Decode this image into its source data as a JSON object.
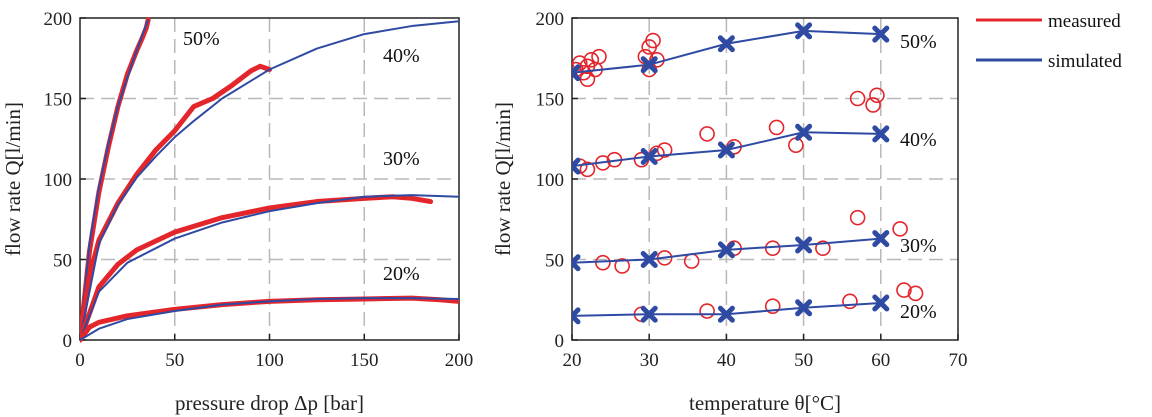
{
  "legend": [
    {
      "label": "measured",
      "color": "#e3262c"
    },
    {
      "label": "simulated",
      "color": "#2f4aa3"
    }
  ],
  "colors": {
    "measured": "#e3262c",
    "simulated": "#2f4aa3",
    "grid": "#b8b8b8"
  },
  "chart_data": [
    {
      "type": "line",
      "xlabel": "pressure drop Δp [bar]",
      "ylabel": "flow rate Q[l/min]",
      "xlim": [
        0,
        200
      ],
      "ylim": [
        0,
        200
      ],
      "xticks": [
        0,
        50,
        100,
        150,
        200
      ],
      "yticks": [
        0,
        50,
        100,
        150,
        200
      ],
      "grid": true,
      "series": [
        {
          "name": "50%",
          "annotation": "50%",
          "measured": [
            [
              0,
              0
            ],
            [
              5,
              55
            ],
            [
              10,
              92
            ],
            [
              15,
              120
            ],
            [
              20,
              145
            ],
            [
              25,
              165
            ],
            [
              30,
              180
            ],
            [
              33,
              188
            ],
            [
              35,
              194
            ],
            [
              36,
              199
            ]
          ],
          "simulated": [
            [
              0,
              0
            ],
            [
              5,
              60
            ],
            [
              10,
              95
            ],
            [
              15,
              122
            ],
            [
              20,
              145
            ],
            [
              25,
              163
            ],
            [
              30,
              180
            ],
            [
              35,
              196
            ],
            [
              36,
              199
            ]
          ]
        },
        {
          "name": "40%",
          "annotation": "40%",
          "measured": [
            [
              0,
              0
            ],
            [
              5,
              40
            ],
            [
              10,
              62
            ],
            [
              20,
              85
            ],
            [
              30,
              103
            ],
            [
              40,
              118
            ],
            [
              50,
              130
            ],
            [
              60,
              145
            ],
            [
              70,
              150
            ],
            [
              80,
              158
            ],
            [
              90,
              167
            ],
            [
              95,
              170
            ],
            [
              100,
              168
            ]
          ],
          "simulated": [
            [
              0,
              0
            ],
            [
              10,
              60
            ],
            [
              20,
              84
            ],
            [
              30,
              101
            ],
            [
              40,
              114
            ],
            [
              50,
              126
            ],
            [
              60,
              136
            ],
            [
              75,
              150
            ],
            [
              100,
              168
            ],
            [
              125,
              181
            ],
            [
              150,
              190
            ],
            [
              175,
              195
            ],
            [
              200,
              198
            ]
          ]
        },
        {
          "name": "30%",
          "annotation": "30%",
          "measured": [
            [
              0,
              0
            ],
            [
              10,
              33
            ],
            [
              20,
              47
            ],
            [
              30,
              56
            ],
            [
              50,
              67
            ],
            [
              75,
              76
            ],
            [
              100,
              82
            ],
            [
              125,
              86
            ],
            [
              150,
              88
            ],
            [
              165,
              89
            ],
            [
              175,
              88
            ],
            [
              185,
              86
            ]
          ],
          "simulated": [
            [
              0,
              0
            ],
            [
              10,
              30
            ],
            [
              25,
              48
            ],
            [
              50,
              63
            ],
            [
              75,
              73
            ],
            [
              100,
              80
            ],
            [
              125,
              85
            ],
            [
              150,
              89
            ],
            [
              175,
              90
            ],
            [
              200,
              89
            ]
          ]
        },
        {
          "name": "20%",
          "annotation": "20%",
          "measured": [
            [
              0,
              0
            ],
            [
              5,
              8
            ],
            [
              10,
              11
            ],
            [
              25,
              15
            ],
            [
              50,
              19
            ],
            [
              75,
              22
            ],
            [
              100,
              24
            ],
            [
              125,
              25
            ],
            [
              150,
              25.5
            ],
            [
              175,
              26
            ],
            [
              190,
              25
            ],
            [
              200,
              24
            ]
          ],
          "simulated": [
            [
              0,
              0
            ],
            [
              10,
              7
            ],
            [
              25,
              13
            ],
            [
              50,
              18
            ],
            [
              75,
              22
            ],
            [
              100,
              24
            ],
            [
              125,
              25.5
            ],
            [
              150,
              26
            ],
            [
              175,
              26
            ],
            [
              200,
              25.5
            ]
          ]
        }
      ]
    },
    {
      "type": "scatter",
      "xlabel": "temperature θ[°C]",
      "ylabel": "flow rate Q[l/min]",
      "xlim": [
        20,
        70
      ],
      "ylim": [
        0,
        200
      ],
      "xticks": [
        20,
        30,
        40,
        50,
        60,
        70
      ],
      "yticks": [
        0,
        50,
        100,
        150,
        200
      ],
      "grid": true,
      "series": [
        {
          "name": "50%",
          "annotation": "50%",
          "measured": [
            [
              20.5,
              168
            ],
            [
              21,
              172
            ],
            [
              21.5,
              166
            ],
            [
              22,
              170
            ],
            [
              22.5,
              174
            ],
            [
              23,
              168
            ],
            [
              23.5,
              176
            ],
            [
              22,
              162
            ],
            [
              29.5,
              176
            ],
            [
              30,
              182
            ],
            [
              30.5,
              186
            ],
            [
              31,
              174
            ],
            [
              30,
              168
            ]
          ],
          "simulated": [
            [
              20,
              166
            ],
            [
              30,
              171
            ],
            [
              40,
              184
            ],
            [
              50,
              192
            ],
            [
              60,
              190
            ]
          ]
        },
        {
          "name": "40%",
          "annotation": "40%",
          "measured": [
            [
              21,
              108
            ],
            [
              22,
              106
            ],
            [
              24,
              110
            ],
            [
              25.5,
              112
            ],
            [
              29,
              112
            ],
            [
              31,
              116
            ],
            [
              32,
              118
            ],
            [
              37.5,
              128
            ],
            [
              41,
              120
            ],
            [
              46.5,
              132
            ],
            [
              49,
              121
            ],
            [
              57,
              150
            ],
            [
              59.5,
              152
            ],
            [
              59,
              146
            ]
          ],
          "simulated": [
            [
              20,
              108
            ],
            [
              30,
              114
            ],
            [
              40,
              118
            ],
            [
              50,
              129
            ],
            [
              60,
              128
            ]
          ]
        },
        {
          "name": "30%",
          "annotation": "30%",
          "measured": [
            [
              24,
              48
            ],
            [
              26.5,
              46
            ],
            [
              32,
              51
            ],
            [
              35.5,
              49
            ],
            [
              41,
              57
            ],
            [
              46,
              57
            ],
            [
              52.5,
              57
            ],
            [
              57,
              76
            ],
            [
              62.5,
              69
            ]
          ],
          "simulated": [
            [
              20,
              48
            ],
            [
              30,
              50
            ],
            [
              40,
              56
            ],
            [
              50,
              59
            ],
            [
              60,
              63
            ]
          ]
        },
        {
          "name": "20%",
          "annotation": "20%",
          "measured": [
            [
              29,
              16
            ],
            [
              37.5,
              18
            ],
            [
              46,
              21
            ],
            [
              56,
              24
            ],
            [
              63,
              31
            ],
            [
              64.5,
              29
            ]
          ],
          "simulated": [
            [
              20,
              15
            ],
            [
              30,
              16
            ],
            [
              40,
              16
            ],
            [
              50,
              20
            ],
            [
              60,
              23
            ]
          ]
        }
      ]
    }
  ]
}
